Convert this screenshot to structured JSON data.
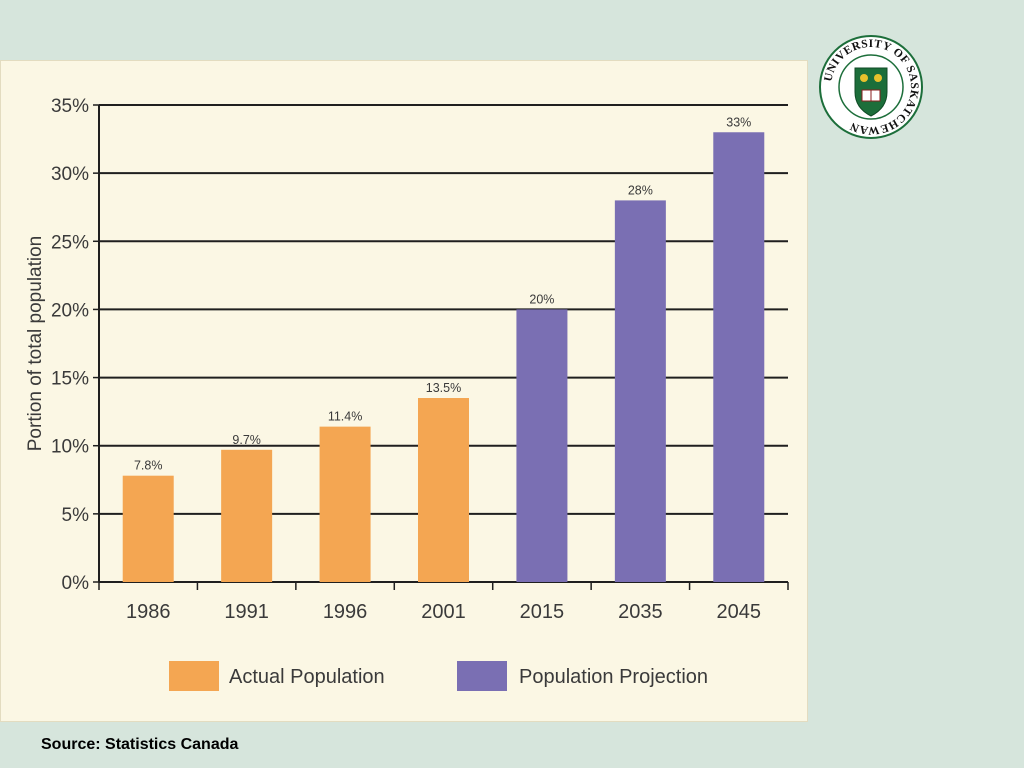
{
  "chart_data": {
    "type": "bar",
    "categories": [
      "1986",
      "1991",
      "1996",
      "2001",
      "2015",
      "2035",
      "2045"
    ],
    "values": [
      7.8,
      9.7,
      11.4,
      13.5,
      20,
      28,
      33
    ],
    "value_labels": [
      "7.8%",
      "9.7%",
      "11.4%",
      "13.5%",
      "20%",
      "28%",
      "33%"
    ],
    "group": [
      "actual",
      "actual",
      "actual",
      "actual",
      "projection",
      "projection",
      "projection"
    ],
    "ylabel": "Portion of total population",
    "ylim": [
      0,
      35
    ],
    "yticks": [
      0,
      5,
      10,
      15,
      20,
      25,
      30,
      35
    ],
    "ytick_labels": [
      "0%",
      "5%",
      "10%",
      "15%",
      "20%",
      "25%",
      "30%",
      "35%"
    ],
    "grid": true,
    "legend_position": "bottom",
    "legend": [
      {
        "key": "actual",
        "label": "Actual Population",
        "color": "#f4a652"
      },
      {
        "key": "projection",
        "label": "Population Projection",
        "color": "#7a6fb3"
      }
    ]
  },
  "logo": {
    "text": "UNIVERSITY OF SASKATCHEWAN",
    "ring_color": "#1c6e3a",
    "shield_color": "#1c6e3a",
    "accent_color": "#e8c12c"
  },
  "footer": {
    "source": "Source: Statistics Canada"
  }
}
